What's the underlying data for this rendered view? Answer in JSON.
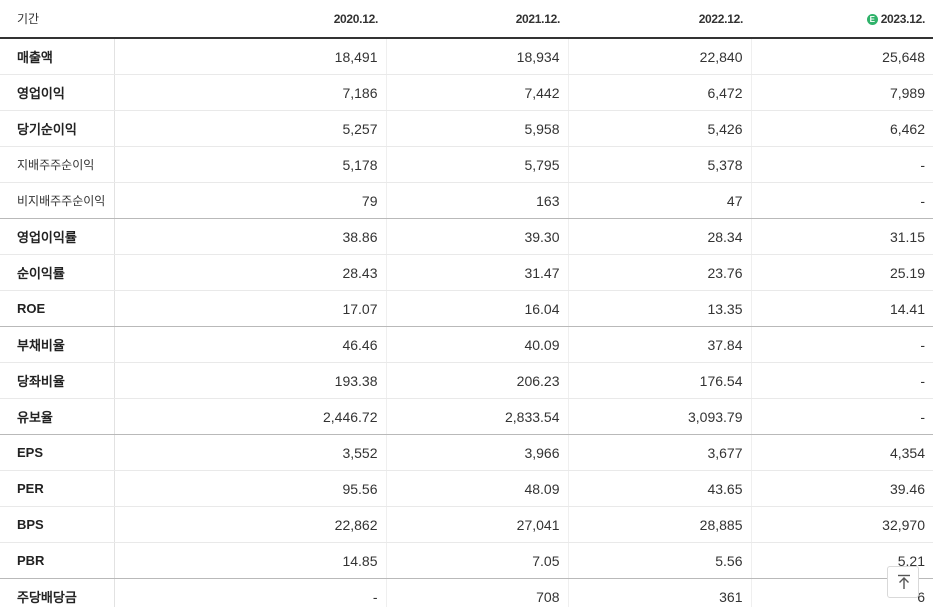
{
  "table": {
    "header": {
      "label": "기간",
      "columns": [
        "2020.12.",
        "2021.12.",
        "2022.12.",
        "2023.12."
      ],
      "estimate_badge": "E"
    },
    "rows": [
      {
        "label": "매출액",
        "values": [
          "18,491",
          "18,934",
          "22,840",
          "25,648"
        ]
      },
      {
        "label": "영업이익",
        "values": [
          "7,186",
          "7,442",
          "6,472",
          "7,989"
        ]
      },
      {
        "label": "당기순이익",
        "values": [
          "5,257",
          "5,958",
          "5,426",
          "6,462"
        ]
      },
      {
        "label": "지배주주순이익",
        "values": [
          "5,178",
          "5,795",
          "5,378",
          "-"
        ]
      },
      {
        "label": "비지배주주순이익",
        "values": [
          "79",
          "163",
          "47",
          "-"
        ]
      },
      {
        "label": "영업이익률",
        "values": [
          "38.86",
          "39.30",
          "28.34",
          "31.15"
        ]
      },
      {
        "label": "순이익률",
        "values": [
          "28.43",
          "31.47",
          "23.76",
          "25.19"
        ]
      },
      {
        "label": "ROE",
        "values": [
          "17.07",
          "16.04",
          "13.35",
          "14.41"
        ]
      },
      {
        "label": "부채비율",
        "values": [
          "46.46",
          "40.09",
          "37.84",
          "-"
        ]
      },
      {
        "label": "당좌비율",
        "values": [
          "193.38",
          "206.23",
          "176.54",
          "-"
        ]
      },
      {
        "label": "유보율",
        "values": [
          "2,446.72",
          "2,833.54",
          "3,093.79",
          "-"
        ]
      },
      {
        "label": "EPS",
        "values": [
          "3,552",
          "3,966",
          "3,677",
          "4,354"
        ]
      },
      {
        "label": "PER",
        "values": [
          "95.56",
          "48.09",
          "43.65",
          "39.46"
        ]
      },
      {
        "label": "BPS",
        "values": [
          "22,862",
          "27,041",
          "28,885",
          "32,970"
        ]
      },
      {
        "label": "PBR",
        "values": [
          "14.85",
          "7.05",
          "5.56",
          "5.21"
        ]
      },
      {
        "label": "주당배당금",
        "values": [
          "-",
          "708",
          "361",
          "6"
        ]
      }
    ]
  },
  "scroll_top_button": {
    "icon": "arrow-up-to-top-icon"
  },
  "colors": {
    "estimate_badge": "#2fb26a",
    "header_rule": "#333333"
  }
}
